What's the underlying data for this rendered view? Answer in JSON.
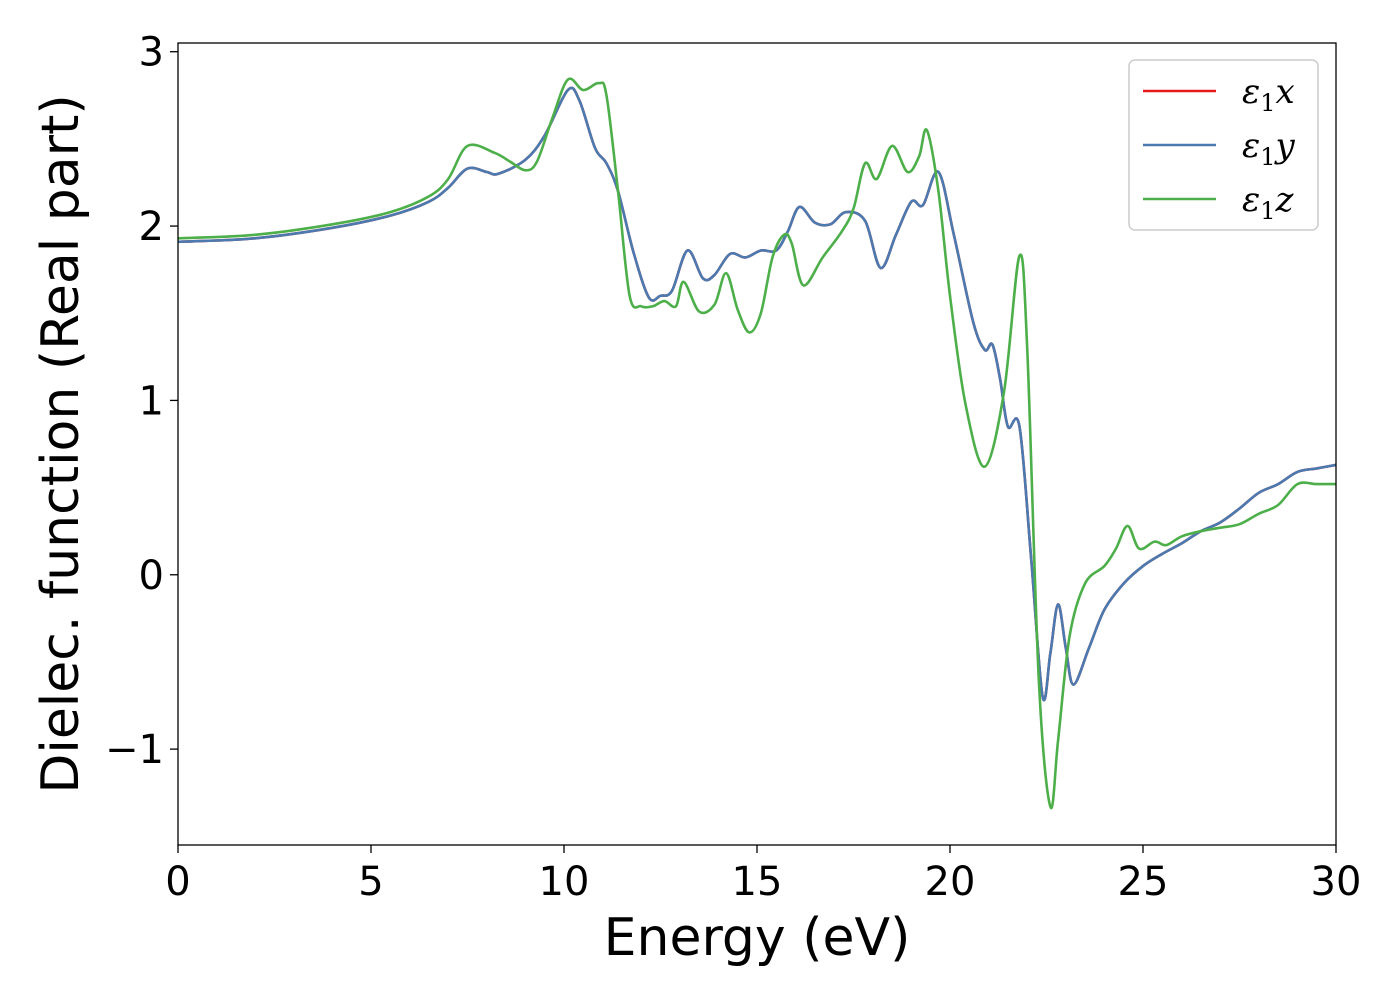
{
  "chart_data": {
    "type": "line",
    "title": "",
    "xlabel": "Energy (eV)",
    "ylabel": "Dielec. function (Real part)",
    "xlim": [
      0,
      30
    ],
    "ylim": [
      -1.55,
      3.05
    ],
    "xticks": [
      {
        "value": 0,
        "label": "0"
      },
      {
        "value": 5,
        "label": "5"
      },
      {
        "value": 10,
        "label": "10"
      },
      {
        "value": 15,
        "label": "15"
      },
      {
        "value": 20,
        "label": "20"
      },
      {
        "value": 25,
        "label": "25"
      },
      {
        "value": 30,
        "label": "30"
      }
    ],
    "yticks": [
      {
        "value": -1,
        "label": "−1"
      },
      {
        "value": 0,
        "label": "0"
      },
      {
        "value": 1,
        "label": "1"
      },
      {
        "value": 2,
        "label": "2"
      },
      {
        "value": 3,
        "label": "3"
      }
    ],
    "grid": false,
    "legend_position": "top-right",
    "series": [
      {
        "name": "ε1x",
        "legend_main": "ε",
        "legend_sub": "1",
        "legend_var": "x",
        "color": "#e41a1c",
        "points": [
          [
            0,
            1.91
          ],
          [
            2,
            1.93
          ],
          [
            4,
            1.99
          ],
          [
            5.5,
            2.06
          ],
          [
            6.5,
            2.14
          ],
          [
            7,
            2.22
          ],
          [
            7.5,
            2.33
          ],
          [
            8,
            2.31
          ],
          [
            8.3,
            2.3
          ],
          [
            9,
            2.38
          ],
          [
            9.5,
            2.52
          ],
          [
            10.1,
            2.78
          ],
          [
            10.4,
            2.72
          ],
          [
            10.8,
            2.45
          ],
          [
            11.1,
            2.36
          ],
          [
            11.4,
            2.2
          ],
          [
            11.8,
            1.85
          ],
          [
            12.2,
            1.59
          ],
          [
            12.5,
            1.6
          ],
          [
            12.8,
            1.63
          ],
          [
            13.2,
            1.86
          ],
          [
            13.6,
            1.7
          ],
          [
            13.9,
            1.72
          ],
          [
            14.3,
            1.84
          ],
          [
            14.7,
            1.82
          ],
          [
            15.1,
            1.86
          ],
          [
            15.5,
            1.86
          ],
          [
            15.8,
            1.97
          ],
          [
            16.1,
            2.11
          ],
          [
            16.5,
            2.02
          ],
          [
            16.9,
            2.01
          ],
          [
            17.3,
            2.08
          ],
          [
            17.8,
            2.03
          ],
          [
            18.2,
            1.76
          ],
          [
            18.6,
            1.95
          ],
          [
            19.0,
            2.14
          ],
          [
            19.3,
            2.12
          ],
          [
            19.7,
            2.31
          ],
          [
            20.1,
            1.95
          ],
          [
            20.6,
            1.45
          ],
          [
            20.9,
            1.29
          ],
          [
            21.1,
            1.32
          ],
          [
            21.3,
            1.12
          ],
          [
            21.5,
            0.85
          ],
          [
            21.8,
            0.85
          ],
          [
            22.1,
            0.1
          ],
          [
            22.4,
            -0.7
          ],
          [
            22.6,
            -0.45
          ],
          [
            22.8,
            -0.17
          ],
          [
            23.0,
            -0.42
          ],
          [
            23.2,
            -0.63
          ],
          [
            23.6,
            -0.42
          ],
          [
            24.0,
            -0.2
          ],
          [
            24.5,
            -0.05
          ],
          [
            25.0,
            0.05
          ],
          [
            25.5,
            0.12
          ],
          [
            26.0,
            0.18
          ],
          [
            26.5,
            0.25
          ],
          [
            27.0,
            0.3
          ],
          [
            27.5,
            0.38
          ],
          [
            28.0,
            0.47
          ],
          [
            28.5,
            0.52
          ],
          [
            29.0,
            0.59
          ],
          [
            29.5,
            0.61
          ],
          [
            30.0,
            0.63
          ]
        ]
      },
      {
        "name": "ε1y",
        "legend_main": "ε",
        "legend_sub": "1",
        "legend_var": "y",
        "color": "#4a7ab0",
        "points": [
          [
            0,
            1.91
          ],
          [
            2,
            1.93
          ],
          [
            4,
            1.99
          ],
          [
            5.5,
            2.06
          ],
          [
            6.5,
            2.14
          ],
          [
            7,
            2.22
          ],
          [
            7.5,
            2.33
          ],
          [
            8,
            2.31
          ],
          [
            8.3,
            2.3
          ],
          [
            9,
            2.38
          ],
          [
            9.5,
            2.52
          ],
          [
            10.1,
            2.78
          ],
          [
            10.4,
            2.72
          ],
          [
            10.8,
            2.45
          ],
          [
            11.1,
            2.36
          ],
          [
            11.4,
            2.2
          ],
          [
            11.8,
            1.85
          ],
          [
            12.2,
            1.59
          ],
          [
            12.5,
            1.6
          ],
          [
            12.8,
            1.63
          ],
          [
            13.2,
            1.86
          ],
          [
            13.6,
            1.7
          ],
          [
            13.9,
            1.72
          ],
          [
            14.3,
            1.84
          ],
          [
            14.7,
            1.82
          ],
          [
            15.1,
            1.86
          ],
          [
            15.5,
            1.86
          ],
          [
            15.8,
            1.97
          ],
          [
            16.1,
            2.11
          ],
          [
            16.5,
            2.02
          ],
          [
            16.9,
            2.01
          ],
          [
            17.3,
            2.08
          ],
          [
            17.8,
            2.03
          ],
          [
            18.2,
            1.76
          ],
          [
            18.6,
            1.95
          ],
          [
            19.0,
            2.14
          ],
          [
            19.3,
            2.12
          ],
          [
            19.7,
            2.31
          ],
          [
            20.1,
            1.95
          ],
          [
            20.6,
            1.45
          ],
          [
            20.9,
            1.29
          ],
          [
            21.1,
            1.32
          ],
          [
            21.3,
            1.12
          ],
          [
            21.5,
            0.85
          ],
          [
            21.8,
            0.85
          ],
          [
            22.1,
            0.1
          ],
          [
            22.4,
            -0.7
          ],
          [
            22.6,
            -0.45
          ],
          [
            22.8,
            -0.17
          ],
          [
            23.0,
            -0.42
          ],
          [
            23.2,
            -0.63
          ],
          [
            23.6,
            -0.42
          ],
          [
            24.0,
            -0.2
          ],
          [
            24.5,
            -0.05
          ],
          [
            25.0,
            0.05
          ],
          [
            25.5,
            0.12
          ],
          [
            26.0,
            0.18
          ],
          [
            26.5,
            0.25
          ],
          [
            27.0,
            0.3
          ],
          [
            27.5,
            0.38
          ],
          [
            28.0,
            0.47
          ],
          [
            28.5,
            0.52
          ],
          [
            29.0,
            0.59
          ],
          [
            29.5,
            0.61
          ],
          [
            30.0,
            0.63
          ]
        ]
      },
      {
        "name": "ε1z",
        "legend_main": "ε",
        "legend_sub": "1",
        "legend_var": "z",
        "color": "#4daf4a",
        "points": [
          [
            0,
            1.93
          ],
          [
            2,
            1.95
          ],
          [
            4,
            2.01
          ],
          [
            5.5,
            2.08
          ],
          [
            6.5,
            2.17
          ],
          [
            7,
            2.27
          ],
          [
            7.5,
            2.46
          ],
          [
            8.2,
            2.42
          ],
          [
            8.6,
            2.37
          ],
          [
            9.0,
            2.32
          ],
          [
            9.3,
            2.37
          ],
          [
            9.7,
            2.62
          ],
          [
            10.1,
            2.84
          ],
          [
            10.5,
            2.78
          ],
          [
            10.9,
            2.82
          ],
          [
            11.1,
            2.75
          ],
          [
            11.4,
            2.2
          ],
          [
            11.7,
            1.6
          ],
          [
            12.0,
            1.54
          ],
          [
            12.3,
            1.54
          ],
          [
            12.6,
            1.57
          ],
          [
            12.9,
            1.54
          ],
          [
            13.1,
            1.68
          ],
          [
            13.5,
            1.51
          ],
          [
            13.9,
            1.55
          ],
          [
            14.2,
            1.73
          ],
          [
            14.5,
            1.52
          ],
          [
            14.8,
            1.39
          ],
          [
            15.1,
            1.5
          ],
          [
            15.4,
            1.82
          ],
          [
            15.7,
            1.95
          ],
          [
            15.9,
            1.9
          ],
          [
            16.2,
            1.66
          ],
          [
            16.7,
            1.82
          ],
          [
            17.2,
            1.97
          ],
          [
            17.5,
            2.1
          ],
          [
            17.8,
            2.36
          ],
          [
            18.1,
            2.27
          ],
          [
            18.5,
            2.46
          ],
          [
            18.9,
            2.31
          ],
          [
            19.2,
            2.4
          ],
          [
            19.4,
            2.55
          ],
          [
            19.7,
            2.2
          ],
          [
            20.0,
            1.6
          ],
          [
            20.4,
            0.98
          ],
          [
            20.9,
            0.62
          ],
          [
            21.4,
            1.05
          ],
          [
            21.8,
            1.83
          ],
          [
            22.0,
            1.3
          ],
          [
            22.3,
            -0.6
          ],
          [
            22.6,
            -1.33
          ],
          [
            22.8,
            -0.95
          ],
          [
            23.1,
            -0.35
          ],
          [
            23.5,
            -0.05
          ],
          [
            24.0,
            0.05
          ],
          [
            24.3,
            0.15
          ],
          [
            24.6,
            0.28
          ],
          [
            24.9,
            0.15
          ],
          [
            25.3,
            0.19
          ],
          [
            25.6,
            0.17
          ],
          [
            26.0,
            0.22
          ],
          [
            26.5,
            0.25
          ],
          [
            27.0,
            0.27
          ],
          [
            27.5,
            0.29
          ],
          [
            28.0,
            0.35
          ],
          [
            28.5,
            0.4
          ],
          [
            29.0,
            0.52
          ],
          [
            29.5,
            0.52
          ],
          [
            30.0,
            0.52
          ]
        ]
      }
    ]
  }
}
